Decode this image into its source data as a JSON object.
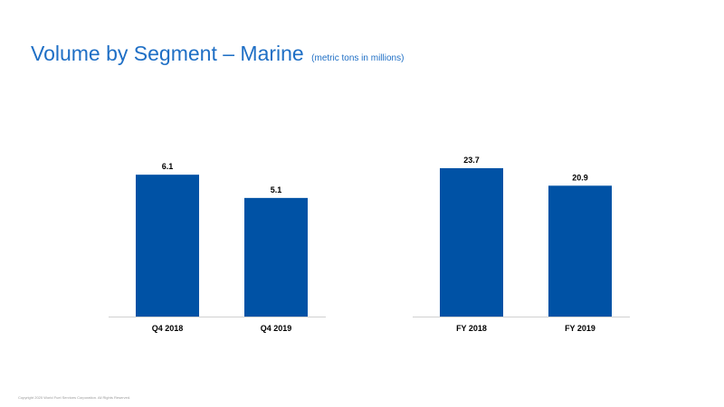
{
  "slide": {
    "title": "Volume by Segment – Marine",
    "subtitle": "(metric tons in millions)",
    "footer": "Copyright 2020 World Fuel Services Corporation. All Rights Reserved."
  },
  "colors": {
    "title": "#1f6fc5",
    "bar": "#0052a5",
    "axis": "#d0d0d0",
    "label": "#000000"
  },
  "chart_data": [
    {
      "type": "bar",
      "categories": [
        "Q4 2018",
        "Q4 2019"
      ],
      "values": [
        6.1,
        5.1
      ],
      "ylim": [
        0,
        7.0
      ],
      "title": "",
      "xlabel": "",
      "ylabel": "",
      "grid": false,
      "data_labels": [
        "6.1",
        "5.1"
      ]
    },
    {
      "type": "bar",
      "categories": [
        "FY 2018",
        "FY 2019"
      ],
      "values": [
        23.7,
        20.9
      ],
      "ylim": [
        0,
        26.0
      ],
      "title": "",
      "xlabel": "",
      "ylabel": "",
      "grid": false,
      "data_labels": [
        "23.7",
        "20.9"
      ]
    }
  ]
}
